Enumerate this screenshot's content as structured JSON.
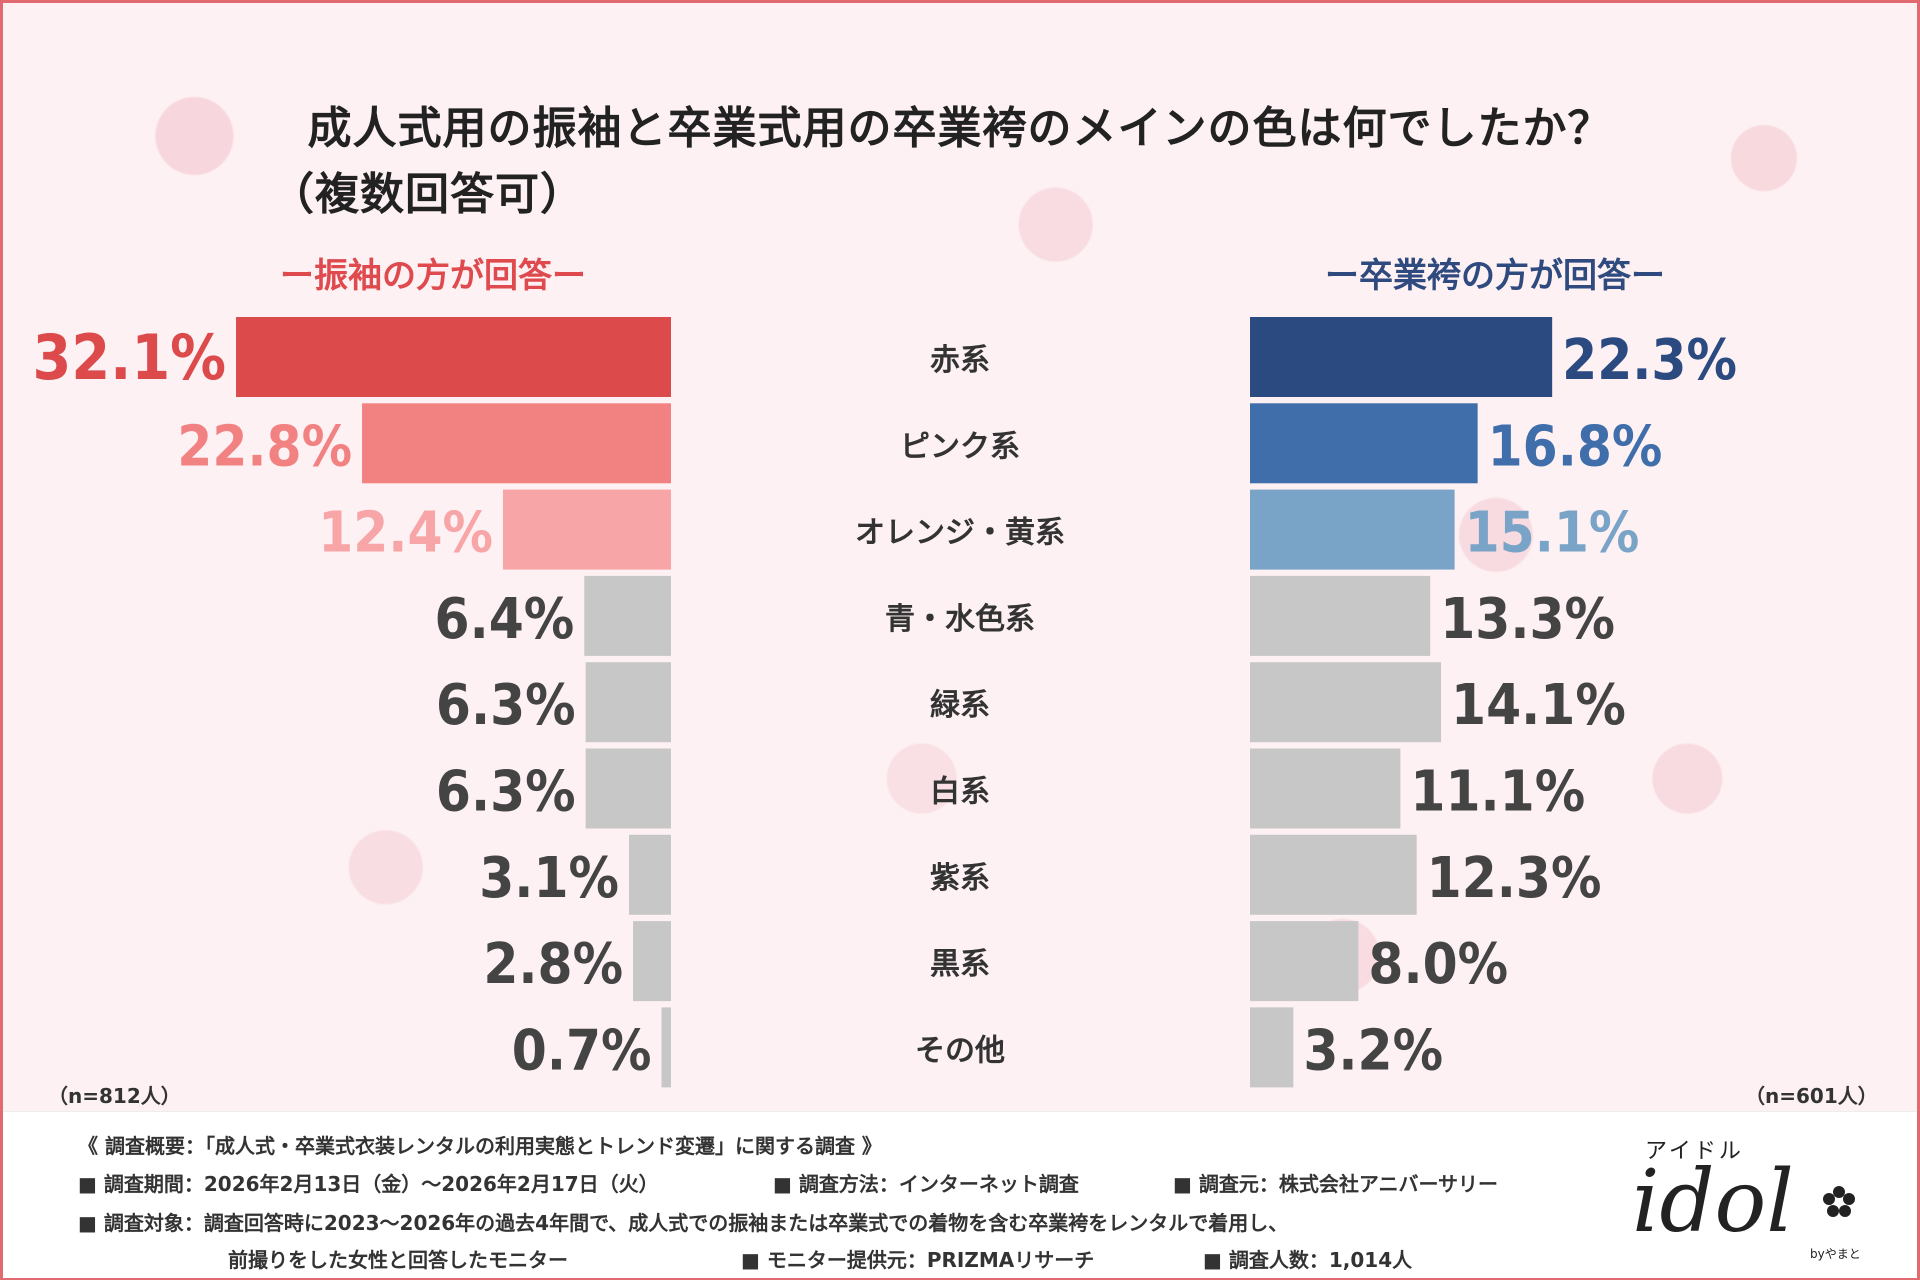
{
  "title": {
    "line1": "成人式用の振袖と卒業式用の卒業袴のメインの色は何でしたか？",
    "line2": "（複数回答可）"
  },
  "left_subhead": "ー振袖の方が回答ー",
  "right_subhead": "ー卒業袴の方が回答ー",
  "left_sample": "（n=812人）",
  "right_sample": "（n=601人）",
  "colors": {
    "left_top": [
      "#dc4a4c",
      "#f28282",
      "#f7a5a6"
    ],
    "right_top": [
      "#2b4a80",
      "#3f6eaa",
      "#79a3c7"
    ],
    "gray_bar": "#c8c7c7",
    "gray_text": "#444444"
  },
  "chart_data": {
    "type": "bar",
    "orientation": "horizontal-butterfly",
    "categories": [
      "赤系",
      "ピンク系",
      "オレンジ・黄系",
      "青・水色系",
      "緑系",
      "白系",
      "紫系",
      "黒系",
      "その他"
    ],
    "series": [
      {
        "name": "振袖の方が回答",
        "values": [
          32.1,
          22.8,
          12.4,
          6.4,
          6.3,
          6.3,
          3.1,
          2.8,
          0.7
        ],
        "labels": [
          "32.1%",
          "22.8%",
          "12.4%",
          "6.4%",
          "6.3%",
          "6.3%",
          "3.1%",
          "2.8%",
          "0.7%"
        ]
      },
      {
        "name": "卒業袴の方が回答",
        "values": [
          22.3,
          16.8,
          15.1,
          13.3,
          14.1,
          11.1,
          12.3,
          8.0,
          3.2
        ],
        "labels": [
          "22.3%",
          "16.8%",
          "15.1%",
          "13.3%",
          "14.1%",
          "11.1%",
          "12.3%",
          "8.0%",
          "3.2%"
        ]
      }
    ],
    "unit": "%"
  },
  "footer": {
    "overview": "《 調査概要：「成人式・卒業式衣装レンタルの利用実態とトレンド変遷」に関する調査 》",
    "period": "■ 調査期間：2026年2月13日（金）～2026年2月17日（火）",
    "method": "■ 調査方法：インターネット調査",
    "organizer": "■ 調査元：株式会社アニバーサリー",
    "target1": "■ 調査対象：調査回答時に2023～2026年の過去4年間で、成人式での振袖または卒業式での着物を含む卒業袴をレンタルで着用し、",
    "target2": "前撮りをした女性と回答したモニター",
    "provider": "■ モニター提供元：PRIZMAリサーチ",
    "count": "■ 調査人数：1,014人"
  },
  "logo": {
    "kana": "アイドル",
    "text": "idol",
    "by": "byやまと",
    "icon": "sakura-flower-icon"
  }
}
